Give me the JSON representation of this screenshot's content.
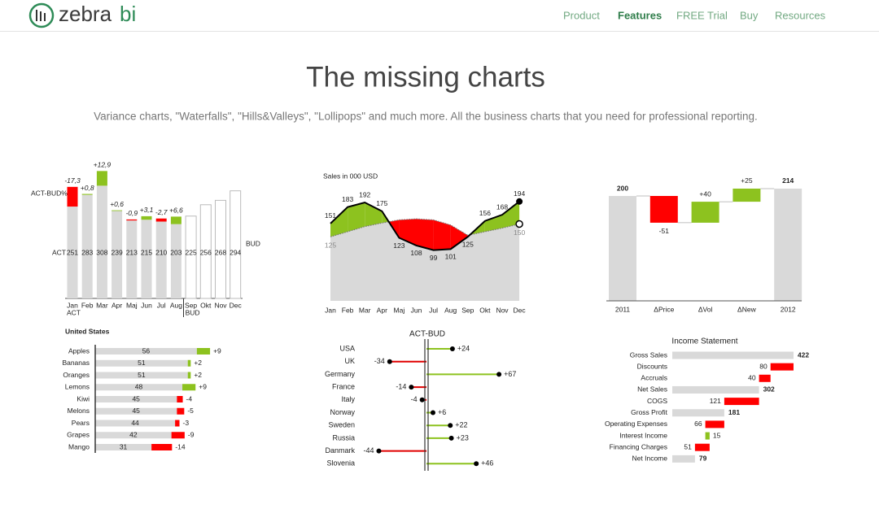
{
  "header": {
    "logo": [
      "zebra",
      "bi"
    ],
    "nav": [
      "Product",
      "Features",
      "FREE Trial",
      "Buy",
      "Resources"
    ],
    "active": 1
  },
  "hero": {
    "title": "The missing charts",
    "subtitle": "Variance charts, \"Waterfalls\", \"Hills&Valleys\", \"Lollipops\" and much more. All the business charts that you need for professional reporting."
  },
  "chart_data": [
    {
      "type": "column",
      "categories": [
        "Jan",
        "Feb",
        "Mar",
        "Apr",
        "Maj",
        "Jun",
        "Jul",
        "Aug",
        "Sep",
        "Okt",
        "Nov",
        "Dec"
      ],
      "series": [
        {
          "name": "ACT",
          "color": "#d9d9d9",
          "values": [
            251,
            283,
            308,
            239,
            213,
            215,
            210,
            203,
            null,
            null,
            null,
            null
          ]
        },
        {
          "name": "BUD",
          "color": "#ffffff",
          "values": [
            null,
            null,
            null,
            null,
            null,
            null,
            null,
            null,
            225,
            256,
            268,
            294
          ]
        }
      ],
      "variance": {
        "name": "ACT-BUD%",
        "values": [
          -17.3,
          0.8,
          12.9,
          0.6,
          -0.9,
          3.1,
          -2.7,
          6.6,
          null,
          null,
          null,
          null
        ],
        "value_labels": [
          "-17,3",
          "+0,8",
          "+12,9",
          "+0,6",
          "-0,9",
          "+3,1",
          "-2,7",
          "+6,6",
          null,
          null,
          null,
          null
        ]
      },
      "positive_color": "#8dc21f",
      "negative_color": "#ff0000"
    },
    {
      "type": "area",
      "title": "Sales in 000 USD",
      "categories": [
        "Jan",
        "Feb",
        "Mar",
        "Apr",
        "Maj",
        "Jun",
        "Jul",
        "Aug",
        "Sep",
        "Okt",
        "Nov",
        "Dec"
      ],
      "series": [
        {
          "color": "#000000",
          "values": [
            151,
            183,
            192,
            175,
            123,
            108,
            99,
            101,
            125,
            156,
            168,
            194
          ]
        },
        {
          "color": "#d9d9d9",
          "values": [
            125,
            135,
            145,
            152,
            158,
            160,
            158,
            148,
            128,
            135,
            142,
            150
          ]
        }
      ],
      "positive_color": "#8dc21f",
      "negative_color": "#ff0000"
    },
    {
      "type": "waterfall",
      "orientation": "vertical",
      "categories": [
        "2011",
        "ΔPrice",
        "ΔVol",
        "ΔNew",
        "2012"
      ],
      "values": [
        200,
        -51,
        40,
        25,
        214
      ],
      "value_labels": [
        "200",
        "-51",
        "+40",
        "+25",
        "214"
      ],
      "measure": [
        "total",
        "relative",
        "relative",
        "relative",
        "total"
      ],
      "total_color": "#d9d9d9",
      "positive_color": "#8dc21f",
      "negative_color": "#ff0000"
    },
    {
      "type": "bar",
      "title": "United States",
      "categories": [
        "Apples",
        "Bananas",
        "Oranges",
        "Lemons",
        "Kiwi",
        "Melons",
        "Pears",
        "Grapes",
        "Mango"
      ],
      "values": [
        56,
        51,
        51,
        48,
        45,
        45,
        44,
        42,
        31
      ],
      "color": "#d9d9d9",
      "variance": {
        "values": [
          9,
          2,
          2,
          9,
          -4,
          -5,
          -3,
          -9,
          -14
        ],
        "value_labels": [
          "+9",
          "+2",
          "+2",
          "+9",
          "-4",
          "-5",
          "-3",
          "-9",
          "-14"
        ]
      },
      "positive_color": "#8dc21f",
      "negative_color": "#ff0000"
    },
    {
      "type": "lollipop",
      "title": "ACT-BUD",
      "categories": [
        "USA",
        "UK",
        "Germany",
        "France",
        "Italy",
        "Norway",
        "Sweden",
        "Russia",
        "Danmark",
        "Slovenia"
      ],
      "values": [
        24,
        -34,
        67,
        -14,
        -4,
        6,
        22,
        23,
        -44,
        46
      ],
      "value_labels": [
        "+24",
        "-34",
        "+67",
        "-14",
        "-4",
        "+6",
        "+22",
        "+23",
        "-44",
        "+46"
      ],
      "positive_color": "#8dc21f",
      "negative_color": "#e00000"
    },
    {
      "type": "waterfall",
      "orientation": "horizontal",
      "title": "Income Statement",
      "categories": [
        "Gross Sales",
        "Discounts",
        "Accruals",
        "Net Sales",
        "COGS",
        "Gross Profit",
        "Operating Expenses",
        "Interest Income",
        "Financing Charges",
        "Net Income"
      ],
      "values": [
        422,
        -80,
        -40,
        302,
        -121,
        181,
        -66,
        15,
        -51,
        79
      ],
      "value_labels": [
        "422",
        "80",
        "40",
        "302",
        "121",
        "181",
        "66",
        "15",
        "51",
        "79"
      ],
      "measure": [
        "total",
        "relative",
        "relative",
        "total",
        "relative",
        "total",
        "relative",
        "relative",
        "relative",
        "total"
      ],
      "total_color": "#d9d9d9",
      "positive_color": "#8dc21f",
      "negative_color": "#ff0000"
    }
  ]
}
